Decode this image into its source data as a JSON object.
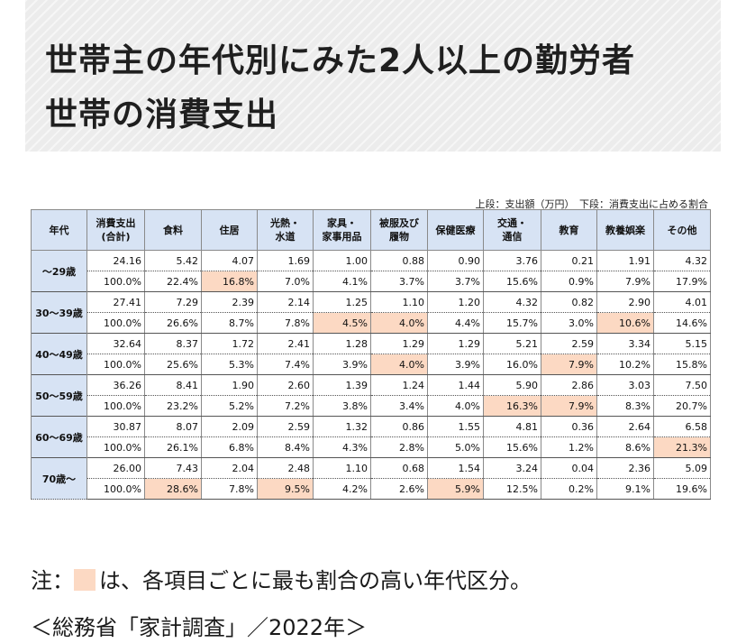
{
  "title": {
    "line1": "世帯主の年代別にみた2人以上の勤労者",
    "line2": "世帯の消費支出"
  },
  "table_note": "上段：支出額（万円）　下段：消費支出に占める割合",
  "table": {
    "headers": [
      [
        "年代"
      ],
      [
        "消費支出",
        "(合計)"
      ],
      [
        "食料"
      ],
      [
        "住居"
      ],
      [
        "光熱・",
        "水道"
      ],
      [
        "家具・",
        "家事用品"
      ],
      [
        "被服及び",
        "履物"
      ],
      [
        "保健医療"
      ],
      [
        "交通・",
        "通信"
      ],
      [
        "教育"
      ],
      [
        "教養娯楽"
      ],
      [
        "その他"
      ]
    ],
    "rows": [
      {
        "age": "～29歳",
        "amounts": [
          "24.16",
          "5.42",
          "4.07",
          "1.69",
          "1.00",
          "0.88",
          "0.90",
          "3.76",
          "0.21",
          "1.91",
          "4.32"
        ],
        "shares": [
          "100.0%",
          "22.4%",
          "16.8%",
          "7.0%",
          "4.1%",
          "3.7%",
          "3.7%",
          "15.6%",
          "0.9%",
          "7.9%",
          "17.9%"
        ],
        "highlight": [
          2
        ]
      },
      {
        "age": "30～39歳",
        "amounts": [
          "27.41",
          "7.29",
          "2.39",
          "2.14",
          "1.25",
          "1.10",
          "1.20",
          "4.32",
          "0.82",
          "2.90",
          "4.01"
        ],
        "shares": [
          "100.0%",
          "26.6%",
          "8.7%",
          "7.8%",
          "4.5%",
          "4.0%",
          "4.4%",
          "15.7%",
          "3.0%",
          "10.6%",
          "14.6%"
        ],
        "highlight": [
          4,
          5,
          9
        ]
      },
      {
        "age": "40～49歳",
        "amounts": [
          "32.64",
          "8.37",
          "1.72",
          "2.41",
          "1.28",
          "1.29",
          "1.29",
          "5.21",
          "2.59",
          "3.34",
          "5.15"
        ],
        "shares": [
          "100.0%",
          "25.6%",
          "5.3%",
          "7.4%",
          "3.9%",
          "4.0%",
          "3.9%",
          "16.0%",
          "7.9%",
          "10.2%",
          "15.8%"
        ],
        "highlight": [
          5,
          8
        ]
      },
      {
        "age": "50～59歳",
        "amounts": [
          "36.26",
          "8.41",
          "1.90",
          "2.60",
          "1.39",
          "1.24",
          "1.44",
          "5.90",
          "2.86",
          "3.03",
          "7.50"
        ],
        "shares": [
          "100.0%",
          "23.2%",
          "5.2%",
          "7.2%",
          "3.8%",
          "3.4%",
          "4.0%",
          "16.3%",
          "7.9%",
          "8.3%",
          "20.7%"
        ],
        "highlight": [
          7,
          8
        ]
      },
      {
        "age": "60～69歳",
        "amounts": [
          "30.87",
          "8.07",
          "2.09",
          "2.59",
          "1.32",
          "0.86",
          "1.55",
          "4.81",
          "0.36",
          "2.64",
          "6.58"
        ],
        "shares": [
          "100.0%",
          "26.1%",
          "6.8%",
          "8.4%",
          "4.3%",
          "2.8%",
          "5.0%",
          "15.6%",
          "1.2%",
          "8.6%",
          "21.3%"
        ],
        "highlight": [
          10
        ]
      },
      {
        "age": "70歳～",
        "amounts": [
          "26.00",
          "7.43",
          "2.04",
          "2.48",
          "1.10",
          "0.68",
          "1.54",
          "3.24",
          "0.04",
          "2.36",
          "5.09"
        ],
        "shares": [
          "100.0%",
          "28.6%",
          "7.8%",
          "9.5%",
          "4.2%",
          "2.6%",
          "5.9%",
          "12.5%",
          "0.2%",
          "9.1%",
          "19.6%"
        ],
        "highlight": [
          1,
          3,
          6
        ]
      }
    ]
  },
  "highlight_color": "#fcd9c3",
  "header_color": "#d7e3f4",
  "footnote": {
    "prefix": "注：",
    "text": "は、各項目ごとに最も割合の高い年代区分。"
  },
  "source": "＜総務省「家計調査」／2022年＞"
}
